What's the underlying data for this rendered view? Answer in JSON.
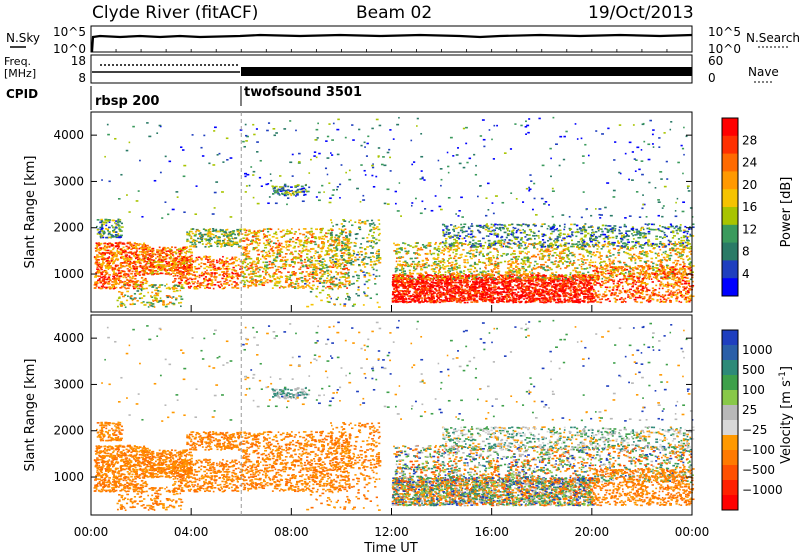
{
  "header": {
    "station": "Clyde River (fitACF)",
    "beam": "Beam 02",
    "date": "19/Oct/2013"
  },
  "top_panels": {
    "nsky": {
      "left_label": "N.Sky",
      "right_label": "N.Search",
      "left_ticks": [
        "10^5",
        "10^0"
      ],
      "right_ticks": [
        "10^5",
        "10^0"
      ]
    },
    "freq": {
      "left_label_1": "Freq.",
      "left_label_2": "[MHz]",
      "left_ticks": [
        "18",
        "8"
      ],
      "right_label": "Nave",
      "right_ticks": [
        "60",
        "0"
      ]
    },
    "cpid": {
      "label": "CPID",
      "segments": [
        {
          "name": "rbsp 200",
          "start_hour": 0.0
        },
        {
          "name": "twofsound 3501",
          "start_hour": 6.0
        }
      ]
    }
  },
  "chart_data": [
    {
      "type": "heatmap",
      "name": "Power",
      "ylabel": "Slant Range [km]",
      "xlim_hours": [
        0,
        24
      ],
      "ylim_km": [
        180,
        4500
      ],
      "y_ticks": [
        "4000",
        "3000",
        "2000",
        "1000"
      ],
      "y_tick_values": [
        4000,
        3000,
        2000,
        1000
      ],
      "colorbar_label": "Power [dB]",
      "colorbar_ticks": [
        "28",
        "24",
        "20",
        "16",
        "12",
        "8",
        "4"
      ],
      "colorbar_values": [
        28,
        24,
        20,
        16,
        12,
        8,
        4
      ],
      "colorbar_colors": [
        "#ff0000",
        "#ff3000",
        "#ff6a00",
        "#ff9900",
        "#f5c300",
        "#a8c400",
        "#3a9a5c",
        "#2a7a66",
        "#1f3fbf",
        "#0000ff"
      ]
    },
    {
      "type": "heatmap",
      "name": "Velocity",
      "ylabel": "Slant Range [km]",
      "xlabel": "Time UT",
      "xlim_hours": [
        0,
        24
      ],
      "ylim_km": [
        180,
        4500
      ],
      "x_ticks": [
        "00:00",
        "04:00",
        "08:00",
        "12:00",
        "16:00",
        "20:00",
        "00:00"
      ],
      "x_tick_hours": [
        0,
        4,
        8,
        12,
        16,
        20,
        24
      ],
      "y_ticks": [
        "4000",
        "3000",
        "2000",
        "1000"
      ],
      "y_tick_values": [
        4000,
        3000,
        2000,
        1000
      ],
      "colorbar_label": "Velocity [m s",
      "colorbar_label_sup": "-1",
      "colorbar_label_end": "]",
      "colorbar_ticks": [
        "1000",
        "500",
        "100",
        "25",
        "−25",
        "−100",
        "−500",
        "−1000"
      ],
      "colorbar_values": [
        1000,
        500,
        100,
        25,
        -25,
        -100,
        -500,
        -1000
      ],
      "colorbar_colors": [
        "#1f3fbf",
        "#2a5fa8",
        "#2e8a78",
        "#3ea04a",
        "#88c848",
        "#b8b8b8",
        "#d8d8d8",
        "#ff9900",
        "#ff7a00",
        "#ff5000",
        "#ff2000",
        "#ff0000"
      ]
    }
  ],
  "colors": {
    "gray_flag": "#aaaaaa",
    "axis": "#000000"
  }
}
